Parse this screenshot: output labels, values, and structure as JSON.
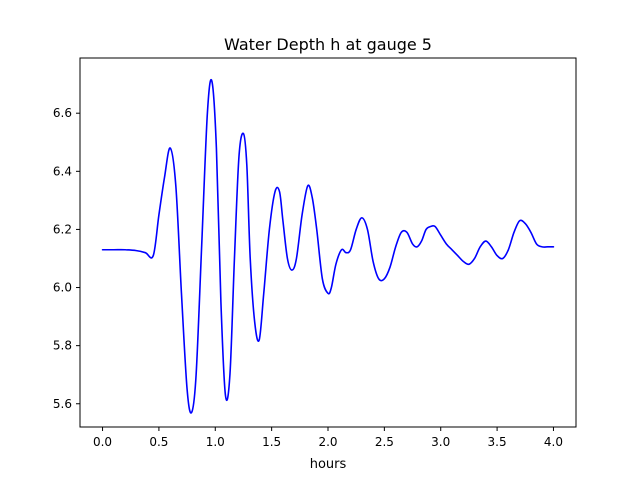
{
  "chart_data": {
    "type": "line",
    "title": "Water Depth h at gauge 5",
    "xlabel": "hours",
    "ylabel": "",
    "xlim": [
      -0.2,
      4.2
    ],
    "ylim": [
      5.52,
      6.79
    ],
    "x_ticks": [
      0.0,
      0.5,
      1.0,
      1.5,
      2.0,
      2.5,
      3.0,
      3.5,
      4.0
    ],
    "x_tick_labels": [
      "0.0",
      "0.5",
      "1.0",
      "1.5",
      "2.0",
      "2.5",
      "3.0",
      "3.5",
      "4.0"
    ],
    "y_ticks": [
      5.6,
      5.8,
      6.0,
      6.2,
      6.4,
      6.6
    ],
    "y_tick_labels": [
      "5.6",
      "5.8",
      "6.0",
      "6.2",
      "6.4",
      "6.6"
    ],
    "grid": false,
    "series": [
      {
        "color": "#0000ff",
        "x": [
          0.0,
          0.1,
          0.2,
          0.3,
          0.38,
          0.45,
          0.5,
          0.55,
          0.6,
          0.65,
          0.7,
          0.75,
          0.79,
          0.83,
          0.88,
          0.93,
          0.97,
          1.01,
          1.05,
          1.09,
          1.13,
          1.17,
          1.21,
          1.25,
          1.28,
          1.31,
          1.35,
          1.39,
          1.43,
          1.48,
          1.53,
          1.57,
          1.6,
          1.64,
          1.68,
          1.72,
          1.77,
          1.82,
          1.86,
          1.9,
          1.95,
          2.0,
          2.03,
          2.07,
          2.12,
          2.16,
          2.2,
          2.25,
          2.3,
          2.35,
          2.4,
          2.45,
          2.5,
          2.55,
          2.6,
          2.65,
          2.7,
          2.75,
          2.79,
          2.83,
          2.87,
          2.91,
          2.95,
          3.0,
          3.05,
          3.1,
          3.15,
          3.2,
          3.25,
          3.3,
          3.35,
          3.4,
          3.45,
          3.5,
          3.55,
          3.6,
          3.65,
          3.7,
          3.75,
          3.8,
          3.85,
          3.9,
          3.95,
          4.0
        ],
        "y": [
          6.13,
          6.13,
          6.13,
          6.127,
          6.12,
          6.11,
          6.25,
          6.38,
          6.48,
          6.35,
          5.98,
          5.65,
          5.57,
          5.7,
          6.15,
          6.6,
          6.71,
          6.48,
          5.95,
          5.63,
          5.7,
          6.1,
          6.45,
          6.53,
          6.42,
          6.1,
          5.88,
          5.82,
          5.98,
          6.2,
          6.33,
          6.33,
          6.23,
          6.1,
          6.06,
          6.1,
          6.25,
          6.35,
          6.31,
          6.2,
          6.03,
          5.98,
          6.0,
          6.08,
          6.13,
          6.12,
          6.13,
          6.2,
          6.24,
          6.2,
          6.09,
          6.03,
          6.03,
          6.07,
          6.14,
          6.19,
          6.19,
          6.15,
          6.14,
          6.16,
          6.2,
          6.21,
          6.21,
          6.18,
          6.15,
          6.13,
          6.11,
          6.09,
          6.08,
          6.1,
          6.14,
          6.16,
          6.14,
          6.11,
          6.1,
          6.13,
          6.19,
          6.23,
          6.22,
          6.19,
          6.15,
          6.14,
          6.14,
          6.14
        ]
      }
    ]
  }
}
